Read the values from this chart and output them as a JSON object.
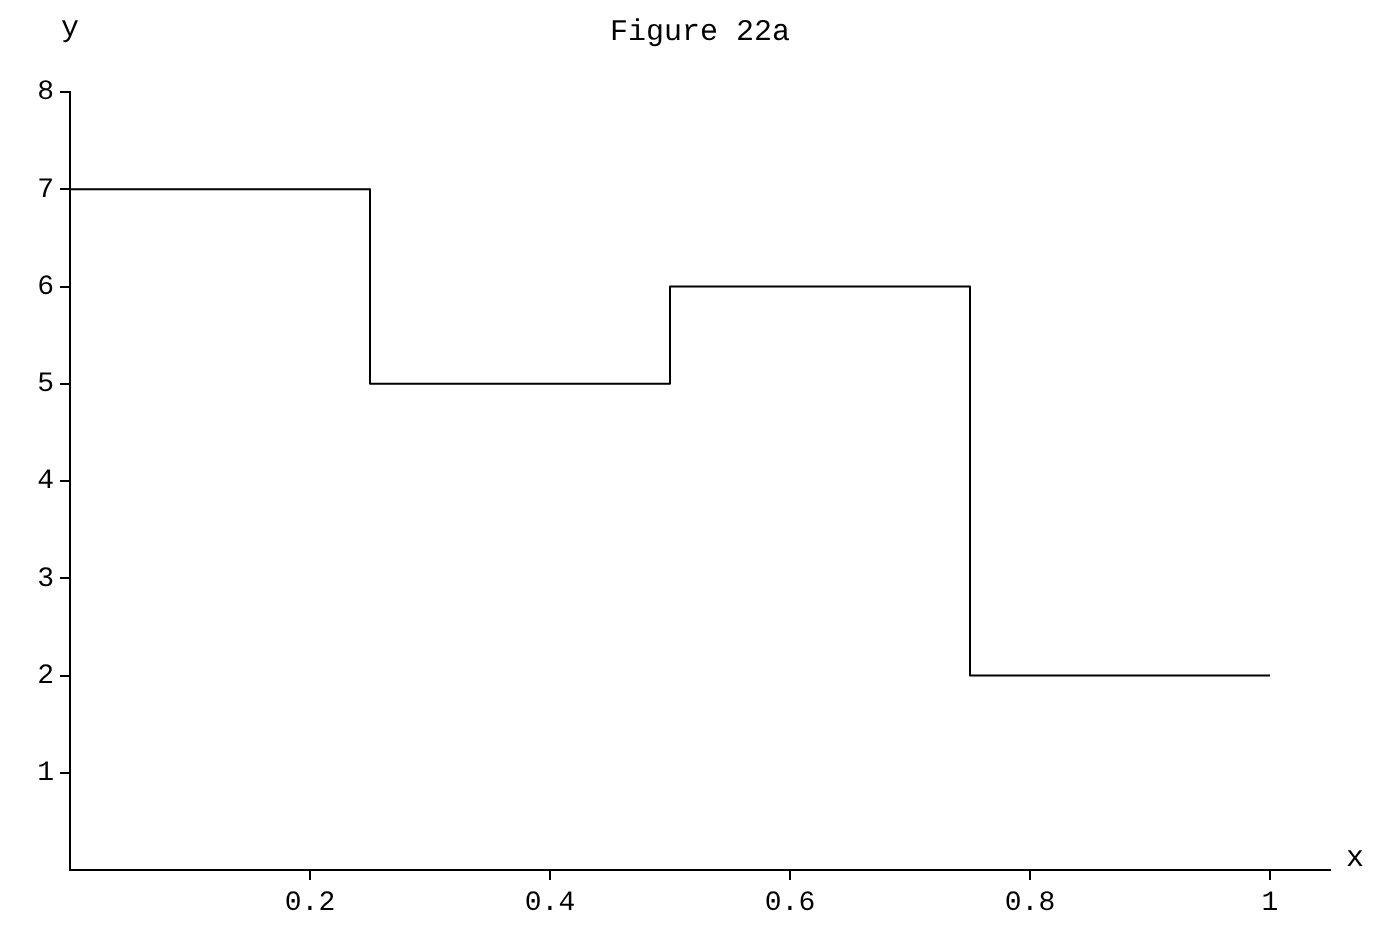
{
  "chart_data": {
    "type": "step",
    "title": "Figure 22a",
    "xlabel": "x",
    "ylabel": "y",
    "x": [
      0,
      0.25,
      0.5,
      0.75,
      1
    ],
    "series": [
      {
        "color": "#000000",
        "values": [
          7,
          5,
          6,
          2,
          2
        ]
      }
    ],
    "xlim": [
      0,
      1.05
    ],
    "xticks": [
      0.2,
      0.4,
      0.6,
      0.8,
      1
    ],
    "ylim": [
      0,
      8
    ],
    "yticks": [
      1,
      2,
      3,
      4,
      5,
      6,
      7,
      8
    ],
    "grid": false,
    "legend": false,
    "marker": "none",
    "line_style": "solid"
  }
}
